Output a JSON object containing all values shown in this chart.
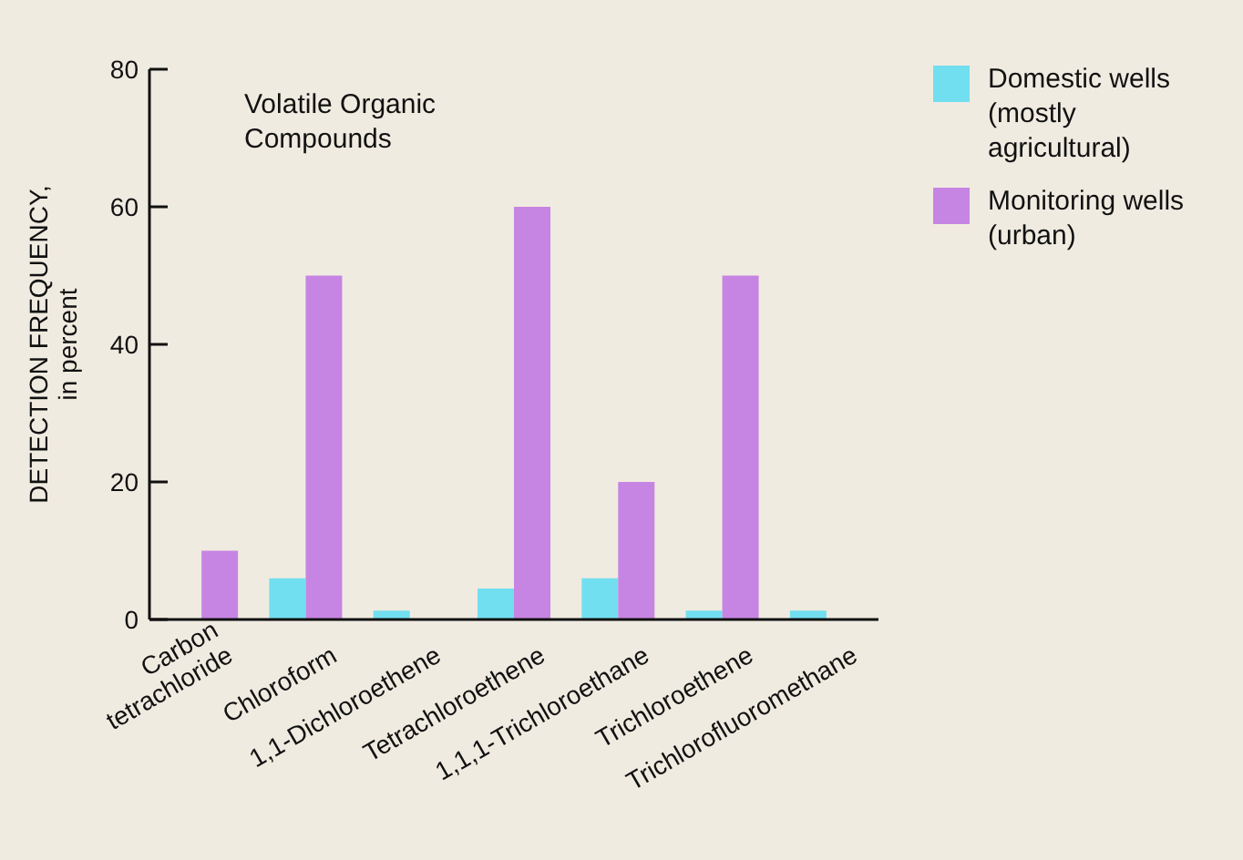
{
  "chart_data": {
    "type": "bar",
    "ylabel": "DETECTION FREQUENCY,\nin percent",
    "annotations": [
      "Volatile Organic Compounds"
    ],
    "categories": [
      "Carbon\ntetrachloride",
      "Chloroform",
      "1,1-Dichloroethene",
      "Tetrachloroethene",
      "1,1,1-Trichloroethane",
      "Trichloroethene",
      "Trichlorofluoromethane"
    ],
    "series": [
      {
        "name": "Domestic wells (mostly agricultural)",
        "color": "#72dff0",
        "values": [
          null,
          6,
          1.3,
          4.5,
          6,
          1.3,
          1.3
        ]
      },
      {
        "name": "Monitoring wells (urban)",
        "color": "#c785e3",
        "values": [
          10,
          50,
          null,
          60,
          20,
          50,
          null
        ]
      }
    ],
    "ylim": [
      0,
      80
    ],
    "yticks": [
      0,
      20,
      40,
      60,
      80
    ],
    "legend": "top right"
  }
}
